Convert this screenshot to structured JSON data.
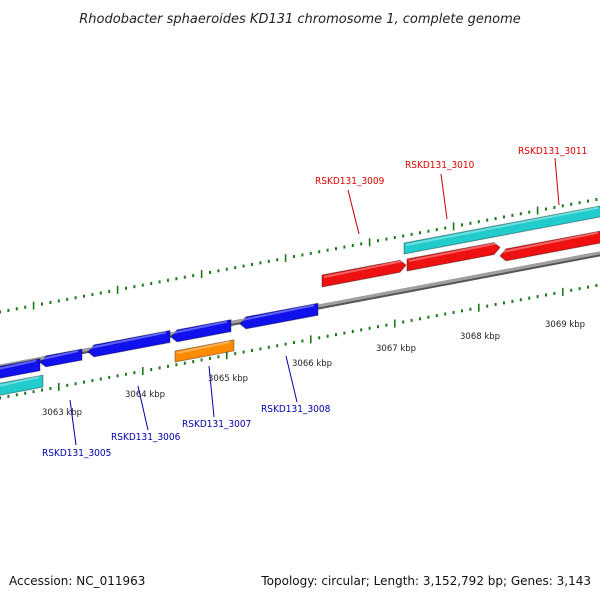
{
  "title": "Rhodobacter sphaeroides KD131 chromosome 1, complete genome",
  "footer": {
    "accession": "Accession: NC_011963",
    "summary": "Topology: circular; Length: 3,152,792 bp; Genes: 3,143"
  },
  "colors": {
    "backbone": "#808080",
    "tick": "#1a7a1a",
    "label_top": "#dd0000",
    "label_bottom": "#0000aa",
    "feature_red": "#ee1111",
    "feature_blue": "#1111ee",
    "feature_cyan": "#22cccc",
    "feature_orange": "#ff8c00"
  },
  "kbp_labels": [
    "3063 kbp",
    "3064 kbp",
    "3065 kbp",
    "3066 kbp",
    "3067 kbp",
    "3068 kbp",
    "3069 kbp"
  ],
  "genes_top": [
    "RSKD131_3009",
    "RSKD131_3010",
    "RSKD131_3011"
  ],
  "genes_bottom": [
    "RSKD131_3005",
    "RSKD131_3006",
    "RSKD131_3007",
    "RSKD131_3008"
  ]
}
